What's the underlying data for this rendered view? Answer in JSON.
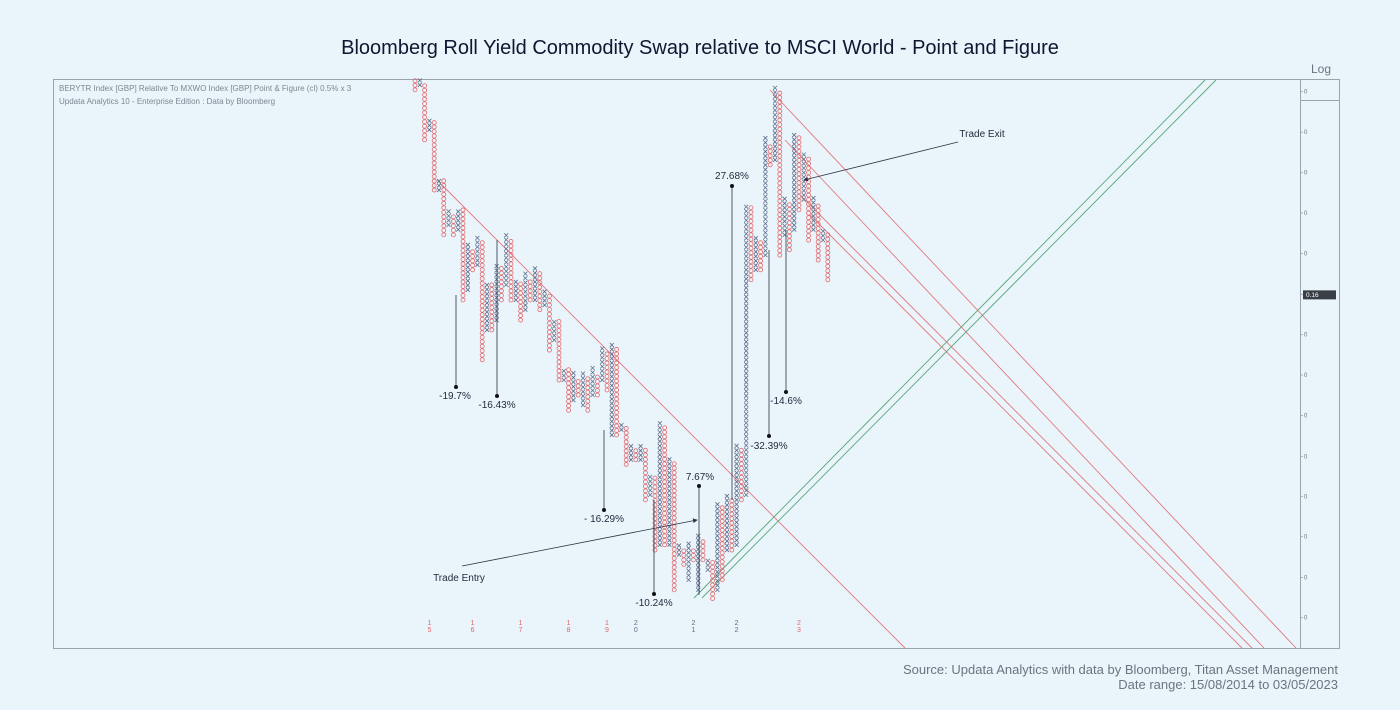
{
  "chart_data": {
    "type": "point-and-figure",
    "title": "Bloomberg Roll Yield Commodity Swap relative to MSCI World - Point and Figure",
    "subtitle": [
      "BERYTR Index [GBP] Relative To MXWO Index [GBP] Point & Figure (cl) 0.5% x 3",
      "Updata Analytics 10 - Enterprise Edition : Data by Bloomberg"
    ],
    "scale_label": "Log",
    "log_scale": true,
    "box_size": 0.5,
    "reversal": 3,
    "x_color": "#5b6d8a",
    "o_color": "#e2666a",
    "ylim": [
      0.1082,
      0.203
    ],
    "yticks": [
      {
        "value": 0.2004,
        "label": "0"
      },
      {
        "value": 0.1916,
        "label": "0"
      },
      {
        "value": 0.1832,
        "label": "0"
      },
      {
        "value": 0.1752,
        "label": "0"
      },
      {
        "value": 0.1675,
        "label": "0"
      },
      {
        "value": 0.1601,
        "label": "0"
      },
      {
        "value": 0.1531,
        "label": "0"
      },
      {
        "value": 0.1464,
        "label": "0"
      },
      {
        "value": 0.14,
        "label": "0"
      },
      {
        "value": 0.1338,
        "label": "0"
      },
      {
        "value": 0.128,
        "label": "0"
      },
      {
        "value": 0.1224,
        "label": "0"
      },
      {
        "value": 0.117,
        "label": "0"
      },
      {
        "value": 0.1119,
        "label": "0"
      }
    ],
    "last_value": 0.16,
    "columns": [
      {
        "type": "O",
        "top": 0.203,
        "bottom": 0.2008
      },
      {
        "type": "X",
        "top": 0.203,
        "bottom": 0.2019
      },
      {
        "type": "O",
        "top": 0.2019,
        "bottom": 0.19
      },
      {
        "type": "X",
        "top": 0.1942,
        "bottom": 0.1921
      },
      {
        "type": "O",
        "top": 0.1932,
        "bottom": 0.1797
      },
      {
        "type": "X",
        "top": 0.1817,
        "bottom": 0.1797
      },
      {
        "type": "O",
        "top": 0.1817,
        "bottom": 0.171
      },
      {
        "type": "X",
        "top": 0.1758,
        "bottom": 0.1729
      },
      {
        "type": "O",
        "top": 0.1748,
        "bottom": 0.171
      },
      {
        "type": "X",
        "top": 0.1758,
        "bottom": 0.172
      },
      {
        "type": "O",
        "top": 0.1758,
        "bottom": 0.1591
      },
      {
        "type": "X",
        "top": 0.1691,
        "bottom": 0.1609
      },
      {
        "type": "O",
        "top": 0.1682,
        "bottom": 0.1645
      },
      {
        "type": "X",
        "top": 0.17,
        "bottom": 0.1654
      },
      {
        "type": "O",
        "top": 0.1691,
        "bottom": 0.1489
      },
      {
        "type": "X",
        "top": 0.1618,
        "bottom": 0.1539
      },
      {
        "type": "O",
        "top": 0.1618,
        "bottom": 0.1539
      },
      {
        "type": "X",
        "top": 0.1654,
        "bottom": 0.1556
      },
      {
        "type": "O",
        "top": 0.1645,
        "bottom": 0.1591
      },
      {
        "type": "X",
        "top": 0.171,
        "bottom": 0.1618
      },
      {
        "type": "O",
        "top": 0.17,
        "bottom": 0.1591
      },
      {
        "type": "X",
        "top": 0.1627,
        "bottom": 0.1591
      },
      {
        "type": "O",
        "top": 0.1618,
        "bottom": 0.1556
      },
      {
        "type": "X",
        "top": 0.1636,
        "bottom": 0.1574
      },
      {
        "type": "O",
        "top": 0.1627,
        "bottom": 0.1591
      },
      {
        "type": "X",
        "top": 0.1645,
        "bottom": 0.1591
      },
      {
        "type": "O",
        "top": 0.1636,
        "bottom": 0.1574
      },
      {
        "type": "X",
        "top": 0.1609,
        "bottom": 0.1582
      },
      {
        "type": "O",
        "top": 0.16,
        "bottom": 0.1505
      },
      {
        "type": "X",
        "top": 0.1556,
        "bottom": 0.1522
      },
      {
        "type": "O",
        "top": 0.1556,
        "bottom": 0.1456
      },
      {
        "type": "X",
        "top": 0.1472,
        "bottom": 0.1456
      },
      {
        "type": "O",
        "top": 0.1472,
        "bottom": 0.1408
      },
      {
        "type": "X",
        "top": 0.1464,
        "bottom": 0.1424
      },
      {
        "type": "O",
        "top": 0.1456,
        "bottom": 0.1432
      },
      {
        "type": "X",
        "top": 0.1464,
        "bottom": 0.1416
      },
      {
        "type": "O",
        "top": 0.1456,
        "bottom": 0.1408
      },
      {
        "type": "X",
        "top": 0.1472,
        "bottom": 0.1432
      },
      {
        "type": "O",
        "top": 0.1464,
        "bottom": 0.1432
      },
      {
        "type": "X",
        "top": 0.1505,
        "bottom": 0.1456
      },
      {
        "type": "O",
        "top": 0.1497,
        "bottom": 0.144
      },
      {
        "type": "X",
        "top": 0.1514,
        "bottom": 0.137
      },
      {
        "type": "O",
        "top": 0.1505,
        "bottom": 0.137
      },
      {
        "type": "X",
        "top": 0.1385,
        "bottom": 0.1378
      },
      {
        "type": "O",
        "top": 0.1378,
        "bottom": 0.1326
      },
      {
        "type": "X",
        "top": 0.1355,
        "bottom": 0.1333
      },
      {
        "type": "O",
        "top": 0.1348,
        "bottom": 0.1333
      },
      {
        "type": "X",
        "top": 0.1355,
        "bottom": 0.1333
      },
      {
        "type": "O",
        "top": 0.1348,
        "bottom": 0.1275
      },
      {
        "type": "X",
        "top": 0.1311,
        "bottom": 0.1282
      },
      {
        "type": "O",
        "top": 0.1304,
        "bottom": 0.1206
      },
      {
        "type": "X",
        "top": 0.1385,
        "bottom": 0.1213
      },
      {
        "type": "O",
        "top": 0.1378,
        "bottom": 0.1213
      },
      {
        "type": "X",
        "top": 0.1333,
        "bottom": 0.1213
      },
      {
        "type": "O",
        "top": 0.1326,
        "bottom": 0.1154
      },
      {
        "type": "X",
        "top": 0.1213,
        "bottom": 0.12
      },
      {
        "type": "O",
        "top": 0.1206,
        "bottom": 0.1187
      },
      {
        "type": "X",
        "top": 0.1213,
        "bottom": 0.1167
      },
      {
        "type": "O",
        "top": 0.1206,
        "bottom": 0.1193
      },
      {
        "type": "X",
        "top": 0.1226,
        "bottom": 0.1154
      },
      {
        "type": "O",
        "top": 0.122,
        "bottom": 0.1193
      },
      {
        "type": "X",
        "top": 0.1193,
        "bottom": 0.118
      },
      {
        "type": "O",
        "top": 0.1187,
        "bottom": 0.1143
      },
      {
        "type": "X",
        "top": 0.1268,
        "bottom": 0.1154
      },
      {
        "type": "O",
        "top": 0.1261,
        "bottom": 0.1167
      },
      {
        "type": "X",
        "top": 0.1282,
        "bottom": 0.1206
      },
      {
        "type": "O",
        "top": 0.1275,
        "bottom": 0.1206
      },
      {
        "type": "X",
        "top": 0.1355,
        "bottom": 0.1213
      },
      {
        "type": "O",
        "top": 0.1348,
        "bottom": 0.1275
      },
      {
        "type": "X",
        "top": 0.1768,
        "bottom": 0.1282
      },
      {
        "type": "O",
        "top": 0.1758,
        "bottom": 0.1627
      },
      {
        "type": "X",
        "top": 0.17,
        "bottom": 0.1645
      },
      {
        "type": "O",
        "top": 0.1691,
        "bottom": 0.1645
      },
      {
        "type": "X",
        "top": 0.19,
        "bottom": 0.1672
      },
      {
        "type": "O",
        "top": 0.1889,
        "bottom": 0.1848
      },
      {
        "type": "X",
        "top": 0.2008,
        "bottom": 0.1858
      },
      {
        "type": "O",
        "top": 0.1997,
        "bottom": 0.1672
      },
      {
        "type": "X",
        "top": 0.1778,
        "bottom": 0.171
      },
      {
        "type": "O",
        "top": 0.1768,
        "bottom": 0.1682
      },
      {
        "type": "X",
        "top": 0.191,
        "bottom": 0.172
      },
      {
        "type": "O",
        "top": 0.19,
        "bottom": 0.1758
      },
      {
        "type": "X",
        "top": 0.1868,
        "bottom": 0.1778
      },
      {
        "type": "O",
        "top": 0.1858,
        "bottom": 0.17
      },
      {
        "type": "X",
        "top": 0.1778,
        "bottom": 0.172
      },
      {
        "type": "O",
        "top": 0.1768,
        "bottom": 0.1663
      },
      {
        "type": "X",
        "top": 0.172,
        "bottom": 0.17
      },
      {
        "type": "O",
        "top": 0.171,
        "bottom": 0.1627
      }
    ],
    "year_markers": [
      "15",
      "16",
      "17",
      "18",
      "19",
      "20",
      "21",
      "22",
      "23"
    ],
    "annotations": [
      "-19.7%",
      "-16.43%",
      "- 16.29%",
      "-10.24%",
      "7.67%",
      "27.68%",
      "-32.39%",
      "-14.6%",
      "Trade Exit",
      "Trade Entry"
    ],
    "source": "Source: Updata Analytics with data by Bloomberg, Titan Asset Management",
    "date_range": "Date range: 15/08/2014 to 03/05/2023"
  }
}
